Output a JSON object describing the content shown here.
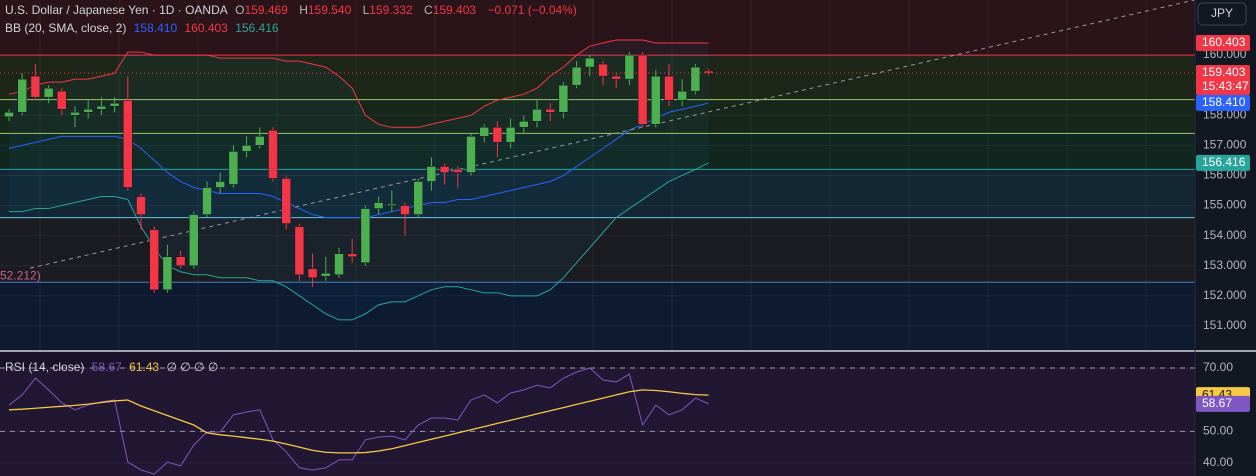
{
  "chart_data": [
    {
      "type": "candlestick",
      "title": "U.S. Dollar / Japanese Yen · 1D · OANDA",
      "ohlc_labels": [
        "O",
        "H",
        "L",
        "C"
      ],
      "last_ohlc_labels": [
        "159.469",
        "159.540",
        "159.332",
        "159.403"
      ],
      "change": "−0.071 (−0.04%)",
      "currency": "JPY",
      "last_time": "15:43:47",
      "up_color": "#4caf50",
      "down_color": "#f23645",
      "open": [
        157.95,
        158.1,
        159.3,
        158.6,
        158.8,
        158.0,
        158.1,
        158.2,
        158.3,
        158.5,
        155.3,
        154.2,
        152.2,
        153.3,
        153.0,
        154.7,
        155.6,
        155.7,
        156.8,
        157.0,
        157.5,
        155.9,
        154.3,
        152.9,
        152.65,
        152.7,
        153.4,
        153.1,
        154.9,
        155.0,
        155.0,
        154.7,
        155.8,
        156.3,
        156.2,
        156.1,
        157.3,
        157.6,
        157.1,
        157.6,
        157.8,
        158.2,
        158.1,
        159.0,
        159.6,
        159.7,
        159.3,
        159.2,
        160.0,
        157.7,
        159.3,
        158.5,
        158.8,
        159.469
      ],
      "high": [
        158.2,
        159.4,
        159.7,
        159.0,
        158.9,
        158.3,
        158.5,
        158.6,
        158.6,
        159.3,
        155.4,
        154.3,
        153.7,
        153.5,
        154.8,
        155.8,
        156.1,
        157.0,
        157.3,
        157.6,
        157.6,
        156.0,
        154.4,
        153.4,
        153.3,
        153.6,
        153.9,
        155.0,
        155.3,
        155.5,
        155.1,
        155.9,
        156.6,
        156.4,
        156.3,
        157.4,
        157.7,
        157.8,
        157.9,
        158.0,
        158.5,
        158.4,
        159.1,
        159.8,
        160.0,
        159.8,
        159.4,
        160.1,
        160.1,
        159.5,
        159.7,
        159.2,
        159.7,
        159.54
      ],
      "low": [
        157.8,
        158.0,
        158.5,
        158.4,
        158.0,
        157.6,
        157.9,
        158.0,
        158.1,
        155.5,
        154.2,
        152.1,
        152.1,
        152.9,
        152.9,
        154.6,
        155.4,
        155.6,
        156.6,
        156.9,
        155.8,
        154.2,
        152.5,
        152.3,
        152.5,
        152.6,
        153.1,
        153.0,
        154.7,
        154.8,
        154.0,
        154.6,
        155.5,
        155.7,
        155.6,
        156.0,
        157.1,
        156.6,
        156.9,
        157.4,
        157.6,
        157.8,
        157.9,
        158.9,
        159.3,
        159.0,
        158.9,
        159.0,
        157.6,
        157.6,
        158.3,
        158.3,
        158.7,
        159.332
      ],
      "close": [
        158.1,
        159.2,
        158.6,
        158.9,
        158.2,
        158.1,
        158.2,
        158.3,
        158.4,
        155.6,
        154.7,
        152.2,
        153.3,
        153.0,
        154.7,
        155.6,
        155.8,
        156.8,
        157.0,
        157.3,
        155.9,
        154.4,
        152.7,
        152.6,
        152.75,
        153.4,
        153.3,
        154.9,
        155.1,
        155.05,
        154.7,
        155.8,
        156.3,
        156.1,
        156.1,
        157.3,
        157.6,
        157.1,
        157.6,
        157.8,
        158.2,
        158.1,
        159.0,
        159.6,
        159.9,
        159.3,
        159.2,
        160.0,
        157.7,
        159.3,
        158.5,
        158.8,
        159.6,
        159.403
      ],
      "indicator": "BB (20, SMA, close, 2)",
      "bands": {
        "middle": {
          "color": "#2962ff",
          "last_label": "158.410",
          "values": [
            156.9,
            157.0,
            157.1,
            157.2,
            157.3,
            157.3,
            157.3,
            157.3,
            157.3,
            157.2,
            156.9,
            156.5,
            156.1,
            155.8,
            155.6,
            155.5,
            155.4,
            155.4,
            155.4,
            155.4,
            155.3,
            155.1,
            154.9,
            154.7,
            154.6,
            154.6,
            154.6,
            154.6,
            154.7,
            154.8,
            154.9,
            155.0,
            155.1,
            155.1,
            155.2,
            155.2,
            155.3,
            155.4,
            155.5,
            155.6,
            155.7,
            155.8,
            156.0,
            156.3,
            156.6,
            156.9,
            157.2,
            157.5,
            157.7,
            157.9,
            158.1,
            158.2,
            158.3,
            158.41
          ]
        },
        "upper": {
          "color": "#f23645",
          "last_label": "160.403",
          "values": [
            158.7,
            158.8,
            159.0,
            159.1,
            159.1,
            159.2,
            159.2,
            159.3,
            159.4,
            160.1,
            160.1,
            160.0,
            160.0,
            160.0,
            160.0,
            160.0,
            159.9,
            159.9,
            159.9,
            159.9,
            159.9,
            159.8,
            159.8,
            159.7,
            159.6,
            159.3,
            158.9,
            158.0,
            157.7,
            157.6,
            157.6,
            157.6,
            157.7,
            157.8,
            157.9,
            158.0,
            158.3,
            158.5,
            158.6,
            158.7,
            158.9,
            159.3,
            159.6,
            160.0,
            160.3,
            160.4,
            160.5,
            160.5,
            160.5,
            160.4,
            160.4,
            160.4,
            160.4,
            160.403
          ]
        },
        "lower": {
          "color": "#26a69a",
          "last_label": "156.416",
          "values": [
            154.8,
            154.8,
            154.9,
            154.9,
            155.0,
            155.1,
            155.2,
            155.3,
            155.3,
            155.2,
            154.3,
            153.6,
            153.0,
            152.8,
            152.7,
            152.7,
            152.6,
            152.6,
            152.6,
            152.5,
            152.5,
            152.3,
            152.0,
            151.7,
            151.4,
            151.2,
            151.2,
            151.4,
            151.7,
            151.8,
            151.8,
            152.0,
            152.2,
            152.3,
            152.3,
            152.2,
            152.1,
            152.1,
            152.0,
            152.0,
            152.0,
            152.2,
            152.6,
            153.1,
            153.6,
            154.1,
            154.6,
            154.9,
            155.2,
            155.5,
            155.8,
            156.0,
            156.2,
            156.416
          ]
        }
      },
      "levels": [
        160.0,
        158.52,
        157.4,
        156.2,
        154.6,
        152.45
      ],
      "level_colors": [
        "#f23645",
        "#9ccc65",
        "#9ccc65",
        "#26a69a",
        "#6ec6e6",
        "#4a7fc0"
      ],
      "zone_colors": [
        "#2a1419",
        "#1d2619",
        "#17261a",
        "#10261f",
        "#122633",
        "#1a1c21",
        "#0d1a30"
      ],
      "level_annotation": "52.212)",
      "trendline": {
        "x": [
          1.6,
          89.8
        ],
        "y": [
          152.92,
          161.83
        ]
      },
      "ylim": [
        150.2,
        161.83
      ],
      "yticks": [
        {
          "value": 160,
          "label": "160.000"
        },
        {
          "value": 158,
          "label": "158.000"
        },
        {
          "value": 157,
          "label": "157.000"
        },
        {
          "value": 156,
          "label": "156.000"
        },
        {
          "value": 155,
          "label": "155.000"
        },
        {
          "value": 154,
          "label": "154.000"
        },
        {
          "value": 153,
          "label": "153.000"
        },
        {
          "value": 152,
          "label": "152.000"
        },
        {
          "value": 151,
          "label": "151.000"
        }
      ]
    },
    {
      "type": "line",
      "title": "RSI (14, close)",
      "empty_values": "∅ ∅ ∅ ∅",
      "rsi": {
        "color": "#7e57c2",
        "last_label": "58.67",
        "values": [
          58.3,
          61.5,
          66.8,
          63.1,
          59.0,
          56.8,
          58.3,
          59.3,
          59.9,
          40.3,
          37.8,
          36.5,
          40.3,
          39.1,
          45.7,
          49.8,
          49.8,
          55.2,
          56.1,
          56.8,
          47.3,
          43.5,
          38.5,
          37.8,
          38.5,
          41.0,
          41.0,
          47.3,
          48.2,
          48.5,
          47.3,
          52.0,
          54.2,
          54.2,
          53.6,
          59.9,
          61.5,
          59.0,
          62.1,
          63.1,
          64.6,
          63.7,
          66.8,
          68.7,
          70.0,
          66.2,
          65.6,
          68.1,
          52.0,
          58.3,
          55.2,
          56.8,
          60.5,
          58.67
        ]
      },
      "ma": {
        "color": "#f7c843",
        "last_label": "61.43",
        "values": [
          56.8,
          57.0,
          57.3,
          57.6,
          57.9,
          58.2,
          58.6,
          59.1,
          59.6,
          59.9,
          58.0,
          56.5,
          55.0,
          53.5,
          52.0,
          49.5,
          48.9,
          48.5,
          48.0,
          47.5,
          46.9,
          46.0,
          45.0,
          44.0,
          43.4,
          43.2,
          43.2,
          43.3,
          43.8,
          44.5,
          45.5,
          46.5,
          47.5,
          48.5,
          49.5,
          50.5,
          51.5,
          52.5,
          53.5,
          54.5,
          55.5,
          56.5,
          57.5,
          58.5,
          59.5,
          60.5,
          61.5,
          62.5,
          63.1,
          62.9,
          62.5,
          62.0,
          61.6,
          61.43
        ]
      },
      "bands": [
        70,
        50
      ],
      "ylim": [
        35.9,
        75.05
      ],
      "yticks": [
        {
          "value": 70,
          "label": "70.00"
        },
        {
          "value": 50,
          "label": "50.00"
        },
        {
          "value": 40,
          "label": "40.00"
        }
      ]
    }
  ]
}
